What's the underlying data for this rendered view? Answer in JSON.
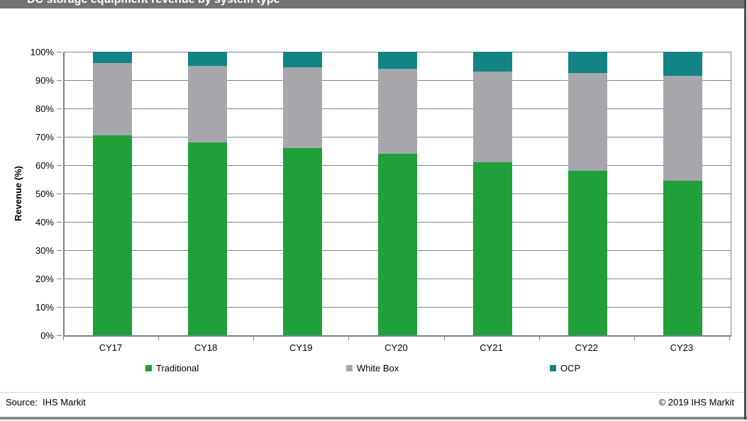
{
  "window": {
    "title": "DC storage equipment revenue by system type"
  },
  "chart_data": {
    "type": "bar",
    "subtype": "stacked-percent",
    "title": "DC storage equipment revenue by system type",
    "categories": [
      "CY17",
      "CY18",
      "CY19",
      "CY20",
      "CY21",
      "CY22",
      "CY23"
    ],
    "series": [
      {
        "name": "Traditional",
        "color": "#1FA038",
        "values": [
          70.5,
          68,
          66,
          64,
          61,
          58,
          54.5
        ]
      },
      {
        "name": "White Box",
        "color": "#A5A7AA",
        "values": [
          25.5,
          27,
          28.5,
          30,
          32,
          34.5,
          37
        ]
      },
      {
        "name": "OCP",
        "color": "#128486",
        "values": [
          4,
          5,
          5.5,
          6,
          7,
          7.5,
          8.5
        ]
      }
    ],
    "xlabel": "",
    "ylabel": "Revenue (%)",
    "ylim": [
      0,
      100
    ],
    "ytick_step": 10,
    "ytick_labels": [
      "0%",
      "10%",
      "20%",
      "30%",
      "40%",
      "50%",
      "60%",
      "70%",
      "80%",
      "90%",
      "100%"
    ],
    "grid": true,
    "legend_position": "bottom"
  },
  "legend_x_positions": [
    205,
    488,
    775
  ],
  "footer": {
    "source": "Source:  IHS Markit",
    "copyright": "© 2019 IHS Markit"
  },
  "colors": {
    "title_bar_bg": "#737373",
    "title_text": "#FFFFFF",
    "gridline": "#7B8794",
    "axis": "#76828E",
    "bottom_border": "#898989",
    "right_border": "#4A4A4A"
  }
}
